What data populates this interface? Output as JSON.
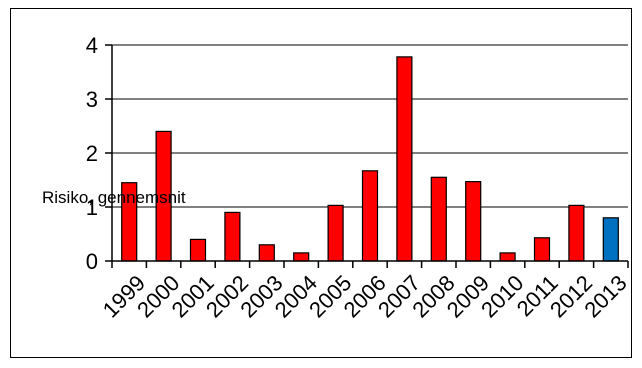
{
  "chart_data": {
    "type": "bar",
    "title": "",
    "xlabel": "",
    "ylabel": "Risiko, gennemsnit",
    "categories": [
      "1999",
      "2000",
      "2001",
      "2002",
      "2003",
      "2004",
      "2005",
      "2006",
      "2007",
      "2008",
      "2009",
      "2010",
      "2011",
      "2012",
      "2013"
    ],
    "values": [
      1.45,
      2.4,
      0.4,
      0.9,
      0.3,
      0.15,
      1.03,
      1.67,
      3.78,
      1.55,
      1.47,
      0.15,
      0.43,
      1.03,
      0.8
    ],
    "ylim": [
      0,
      4
    ],
    "yticks": [
      "0",
      "1",
      "2",
      "3",
      "4"
    ],
    "grid": true,
    "legend": "none",
    "colors": {
      "default": "#ff0000",
      "highlight": "#0070c0",
      "highlight_category": "2013",
      "outline": "#000000"
    }
  }
}
